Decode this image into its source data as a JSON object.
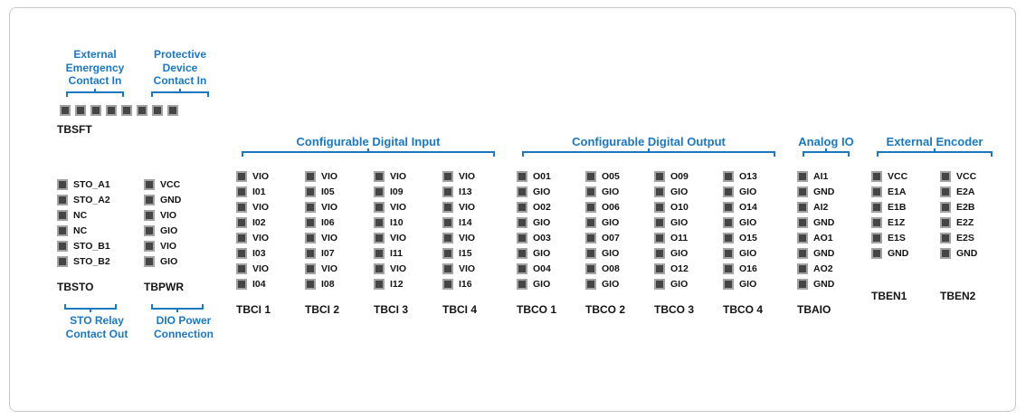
{
  "colors": {
    "accent": "#1b78be",
    "pin_fill": "#454545",
    "pin_border": "#a3a3a3",
    "text": "#141414",
    "frame_border": "#c8c8c8",
    "background": "#ffffff"
  },
  "tbsft": {
    "name": "TBSFT",
    "pin_count": 8,
    "bracket_groups": [
      {
        "label": "External Emergency Contact In"
      },
      {
        "label": "Protective Device Contact In"
      }
    ]
  },
  "left_blocks": [
    {
      "name": "TBSTO",
      "pins": [
        "STO_A1",
        "STO_A2",
        "NC",
        "NC",
        "STO_B1",
        "STO_B2"
      ],
      "bottom_label": "STO Relay Contact Out"
    },
    {
      "name": "TBPWR",
      "pins": [
        "VCC",
        "GND",
        "VIO",
        "GIO",
        "VIO",
        "GIO"
      ],
      "bottom_label": "DIO Power Connection"
    }
  ],
  "sections": {
    "digital_input": {
      "label": "Configurable Digital Input",
      "blocks": [
        {
          "name": "TBCI 1",
          "pins": [
            "VIO",
            "I01",
            "VIO",
            "I02",
            "VIO",
            "I03",
            "VIO",
            "I04"
          ]
        },
        {
          "name": "TBCI 2",
          "pins": [
            "VIO",
            "I05",
            "VIO",
            "I06",
            "VIO",
            "I07",
            "VIO",
            "I08"
          ]
        },
        {
          "name": "TBCI 3",
          "pins": [
            "VIO",
            "I09",
            "VIO",
            "I10",
            "VIO",
            "I11",
            "VIO",
            "I12"
          ]
        },
        {
          "name": "TBCI 4",
          "pins": [
            "VIO",
            "I13",
            "VIO",
            "I14",
            "VIO",
            "I15",
            "VIO",
            "I16"
          ]
        }
      ]
    },
    "digital_output": {
      "label": "Configurable Digital Output",
      "blocks": [
        {
          "name": "TBCO 1",
          "pins": [
            "O01",
            "GIO",
            "O02",
            "GIO",
            "O03",
            "GIO",
            "O04",
            "GIO"
          ]
        },
        {
          "name": "TBCO 2",
          "pins": [
            "O05",
            "GIO",
            "O06",
            "GIO",
            "O07",
            "GIO",
            "O08",
            "GIO"
          ]
        },
        {
          "name": "TBCO 3",
          "pins": [
            "O09",
            "GIO",
            "O10",
            "GIO",
            "O11",
            "GIO",
            "O12",
            "GIO"
          ]
        },
        {
          "name": "TBCO 4",
          "pins": [
            "O13",
            "GIO",
            "O14",
            "GIO",
            "O15",
            "GIO",
            "O16",
            "GIO"
          ]
        }
      ]
    },
    "analog_io": {
      "label": "Analog IO",
      "blocks": [
        {
          "name": "TBAIO",
          "pins": [
            "AI1",
            "GND",
            "AI2",
            "GND",
            "AO1",
            "GND",
            "AO2",
            "GND"
          ]
        }
      ]
    },
    "encoder": {
      "label": "External Encoder",
      "blocks": [
        {
          "name": "TBEN1",
          "pins": [
            "VCC",
            "E1A",
            "E1B",
            "E1Z",
            "E1S",
            "GND"
          ]
        },
        {
          "name": "TBEN2",
          "pins": [
            "VCC",
            "E2A",
            "E2B",
            "E2Z",
            "E2S",
            "GND"
          ]
        }
      ]
    }
  }
}
